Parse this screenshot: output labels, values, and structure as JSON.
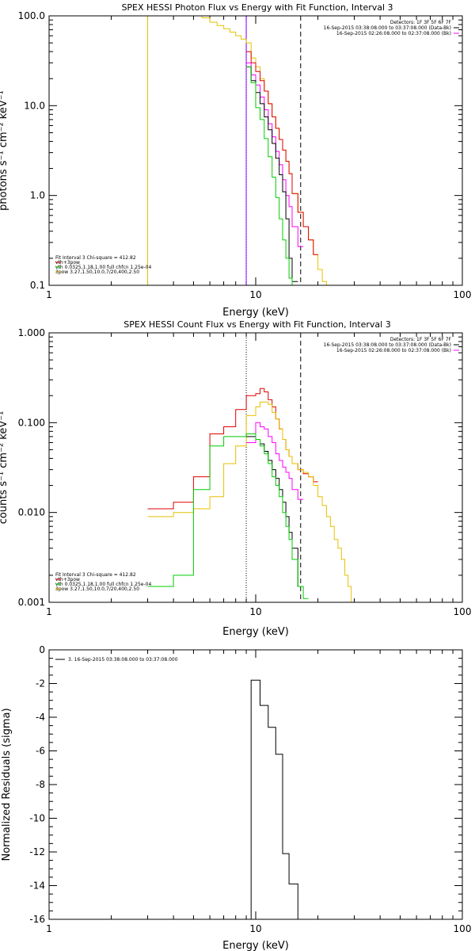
{
  "chart_data": [
    {
      "type": "line",
      "title": "SPEX HESSI Photon Flux vs Energy with Fit Function, Interval 3",
      "xlabel": "Energy (keV)",
      "ylabel": "photons s⁻¹ cm⁻² keV⁻¹",
      "x_scale": "log",
      "y_scale": "log",
      "xlim": [
        1,
        100
      ],
      "ylim": [
        0.1,
        100
      ],
      "x_ticks": [
        {
          "v": 1,
          "label": "1"
        },
        {
          "v": 10,
          "label": "10"
        },
        {
          "v": 100,
          "label": "100"
        }
      ],
      "y_ticks": [
        {
          "v": 100,
          "label": "100.0"
        },
        {
          "v": 10,
          "label": "10.0"
        },
        {
          "v": 1,
          "label": "1.0"
        },
        {
          "v": 0.1,
          "label": "0.1"
        }
      ],
      "vlines": [
        {
          "x": 9.0,
          "color": "#ff00ff",
          "dash": "none"
        },
        {
          "x": 9.0,
          "color": "#0000ff",
          "dash": "1,1"
        },
        {
          "x": 16.5,
          "color": "#000000",
          "dash": "6,4"
        },
        {
          "x": 3.0,
          "color": "#e8c000",
          "dash": "none"
        }
      ],
      "legend_right": [
        {
          "text": "Detectors: 1F 3F 5F 6F 7F",
          "color": "#000000"
        },
        {
          "text": "16-Sep-2015 03:38:08.000 to 03:37:08.000 (Data-Bk)",
          "color": "#000000"
        },
        {
          "text": "16-Sep-2015 02:26:08.000 to 02:37:08.000 (Bk)",
          "color": "#ff00ff"
        }
      ],
      "legend_left": [
        {
          "text": "Fit Interval 3   Chi-square = 412.82",
          "color": ""
        },
        {
          "text": "vth+3pow",
          "color": "#e00000"
        },
        {
          "text": "vth 0.0325,1.18,1.00  full chfcn 1.25e-04",
          "color": "#00cc00"
        },
        {
          "text": "3pow 3.27,1.50,10.0,7/20,400,2.50",
          "color": "#e8c000"
        }
      ],
      "series": [
        {
          "color": "#e8c000",
          "edges": [
            5.0,
            5.5,
            6.0,
            6.5,
            7.0,
            7.5,
            8.0,
            8.5,
            9.0,
            9.5,
            10.0,
            10.5,
            11.0,
            11.5,
            12.0,
            12.5,
            13.0,
            13.5,
            14.0,
            14.5,
            15.0,
            16.0,
            17.0,
            18.0,
            19.0,
            20.0,
            21.0,
            22.0,
            23.0
          ],
          "values": [
            100,
            95,
            85,
            78,
            72,
            66,
            60,
            55,
            50,
            34,
            27,
            20,
            14.5,
            10.5,
            7.5,
            5.6,
            4.2,
            3.2,
            2.4,
            1.75,
            1.05,
            0.65,
            0.45,
            0.32,
            0.22,
            0.15,
            0.11,
            0.08
          ]
        },
        {
          "color": "#e00000",
          "edges": [
            9.0,
            9.5,
            10.0,
            10.5,
            11.0,
            11.5,
            12.0,
            12.5,
            13.0,
            13.5,
            14.0,
            14.5,
            15.0,
            16.0,
            17.0,
            18.0,
            19.0,
            20.0
          ],
          "values": [
            40,
            30,
            24,
            19,
            14.5,
            10.5,
            7.5,
            5.6,
            4.2,
            3.2,
            2.4,
            1.75,
            1.05,
            0.65,
            0.45,
            0.32,
            0.22
          ]
        },
        {
          "color": "#ff00ff",
          "edges": [
            9.0,
            9.5,
            10.0,
            10.5,
            11.0,
            11.5,
            12.0,
            12.5,
            13.0,
            13.5,
            14.0,
            14.5,
            15.0,
            16.0,
            17.0
          ],
          "values": [
            30,
            22,
            17,
            12.5,
            9,
            6.3,
            4.5,
            3.1,
            2.2,
            1.5,
            1.0,
            0.75,
            0.45,
            0.27
          ]
        },
        {
          "color": "#000000",
          "edges": [
            9.0,
            9.5,
            10.0,
            10.5,
            11.0,
            11.5,
            12.0,
            12.5,
            13.0,
            13.5,
            14.0,
            14.5,
            15.0,
            16.0
          ],
          "values": [
            27,
            19,
            14,
            10.5,
            7.5,
            5.4,
            3.8,
            2.6,
            1.7,
            1.1,
            0.55,
            0.2,
            0.11
          ]
        },
        {
          "color": "#00cc00",
          "edges": [
            9.0,
            9.5,
            10.0,
            10.5,
            11.0,
            11.5,
            12.0,
            12.5,
            13.0,
            13.5,
            14.0,
            14.5,
            15.0,
            16.0
          ],
          "values": [
            27,
            18,
            9.5,
            7,
            4.3,
            2.7,
            1.6,
            0.95,
            0.55,
            0.32,
            0.2,
            0.12,
            0.08
          ]
        }
      ]
    },
    {
      "type": "line",
      "title": "SPEX HESSI Count Flux vs Energy with Fit Function, Interval 3",
      "xlabel": "Energy (keV)",
      "ylabel": "counts s⁻¹ cm⁻² keV⁻¹",
      "x_scale": "log",
      "y_scale": "log",
      "xlim": [
        1,
        100
      ],
      "ylim": [
        0.001,
        1
      ],
      "x_ticks": [
        {
          "v": 1,
          "label": "1"
        },
        {
          "v": 10,
          "label": "10"
        },
        {
          "v": 100,
          "label": "100"
        }
      ],
      "y_ticks": [
        {
          "v": 1,
          "label": "1.000"
        },
        {
          "v": 0.1,
          "label": "0.100"
        },
        {
          "v": 0.01,
          "label": "0.010"
        },
        {
          "v": 0.001,
          "label": "0.001"
        }
      ],
      "vlines": [
        {
          "x": 9.0,
          "color": "#000000",
          "dash": "1,2"
        },
        {
          "x": 16.5,
          "color": "#000000",
          "dash": "6,4"
        }
      ],
      "legend_right": [
        {
          "text": "Detectors: 1F 3F 5F 6F 7F",
          "color": "#000000"
        },
        {
          "text": "16-Sep-2015 03:38:08.000 to 03:37:08.000 (Data-Bk)",
          "color": "#000000"
        },
        {
          "text": "16-Sep-2015 02:26:08.000 to 02:37:08.000 (Bk)",
          "color": "#ff00ff"
        }
      ],
      "legend_left": [
        {
          "text": "Fit Interval 3   Chi-square = 412.82",
          "color": ""
        },
        {
          "text": "vth+3pow",
          "color": "#e00000"
        },
        {
          "text": "vth 0.0325,1.18,1.00  full chfcn 1.25e-04",
          "color": "#00cc00"
        },
        {
          "text": "3pow 3.27,1.50,10.0,7/20,400,2.50",
          "color": "#e8c000"
        }
      ],
      "series": [
        {
          "color": "#e00000",
          "edges": [
            3.0,
            4.0,
            5.0,
            6.0,
            7.0,
            8.0,
            9.0,
            10.0,
            10.5,
            11.0,
            11.5,
            12.0,
            12.5,
            13.0,
            13.5,
            14.0,
            14.5,
            15.0,
            16.0,
            17.0,
            18.0,
            19.0,
            20.0
          ],
          "values": [
            0.011,
            0.013,
            0.025,
            0.075,
            0.09,
            0.14,
            0.2,
            0.21,
            0.24,
            0.22,
            0.18,
            0.15,
            0.11,
            0.085,
            0.065,
            0.05,
            0.042,
            0.035,
            0.03,
            0.027,
            0.025,
            0.022
          ]
        },
        {
          "color": "#e8c000",
          "edges": [
            3.0,
            4.0,
            5.0,
            6.0,
            7.0,
            8.0,
            9.0,
            10.0,
            10.5,
            11.0,
            11.5,
            12.0,
            12.5,
            13.0,
            13.5,
            14.0,
            14.5,
            15.0,
            16.0,
            17.0,
            18.0,
            19.0,
            20.0,
            21.0,
            22.0,
            23.0,
            24.0,
            25.0,
            26.0,
            27.0,
            28.0,
            29.0,
            30.0
          ],
          "values": [
            0.009,
            0.01,
            0.011,
            0.015,
            0.035,
            0.055,
            0.12,
            0.15,
            0.17,
            0.17,
            0.16,
            0.13,
            0.11,
            0.085,
            0.065,
            0.05,
            0.042,
            0.035,
            0.03,
            0.028,
            0.025,
            0.02,
            0.015,
            0.012,
            0.009,
            0.007,
            0.005,
            0.004,
            0.003,
            0.002,
            0.0015,
            0.001
          ]
        },
        {
          "color": "#ff00ff",
          "edges": [
            9.0,
            10.0,
            10.5,
            11.0,
            11.5,
            12.0,
            12.5,
            13.0,
            13.5,
            14.0,
            14.5,
            15.0,
            16.0,
            17.0
          ],
          "values": [
            0.06,
            0.1,
            0.09,
            0.085,
            0.07,
            0.06,
            0.045,
            0.038,
            0.032,
            0.028,
            0.024,
            0.018,
            0.014
          ]
        },
        {
          "color": "#000000",
          "edges": [
            9.0,
            10.0,
            10.5,
            11.0,
            11.5,
            12.0,
            12.5,
            13.0,
            13.5,
            14.0,
            14.5,
            15.0,
            16.0,
            17.0
          ],
          "values": [
            0.07,
            0.065,
            0.058,
            0.048,
            0.038,
            0.03,
            0.024,
            0.018,
            0.013,
            0.009,
            0.006,
            0.004,
            0.0015
          ]
        },
        {
          "color": "#00cc00",
          "edges": [
            3.0,
            4.0,
            5.0,
            6.0,
            7.0,
            8.0,
            9.0,
            10.0,
            10.5,
            11.0,
            11.5,
            12.0,
            12.5,
            13.0,
            13.5,
            14.0,
            14.5,
            15.0,
            16.0,
            17.0,
            18.0
          ],
          "values": [
            0.0015,
            0.002,
            0.018,
            0.055,
            0.07,
            0.07,
            0.075,
            0.065,
            0.055,
            0.045,
            0.035,
            0.025,
            0.02,
            0.015,
            0.01,
            0.007,
            0.005,
            0.003,
            0.0015,
            0.0011
          ]
        }
      ]
    },
    {
      "type": "line",
      "title": "",
      "xlabel": "Energy (keV)",
      "ylabel": "Normalized Residuals (sigma)",
      "x_scale": "log",
      "y_scale": "linear",
      "xlim": [
        1,
        100
      ],
      "ylim": [
        -16,
        0
      ],
      "x_ticks": [
        {
          "v": 1,
          "label": "1"
        },
        {
          "v": 10,
          "label": "10"
        },
        {
          "v": 100,
          "label": "100"
        }
      ],
      "y_ticks": [
        {
          "v": 0,
          "label": "0"
        },
        {
          "v": -2,
          "label": "-2"
        },
        {
          "v": -4,
          "label": "-4"
        },
        {
          "v": -6,
          "label": "-6"
        },
        {
          "v": -8,
          "label": "-8"
        },
        {
          "v": -10,
          "label": "-10"
        },
        {
          "v": -12,
          "label": "-12"
        },
        {
          "v": -14,
          "label": "-14"
        },
        {
          "v": -16,
          "label": "-16"
        }
      ],
      "vlines": [],
      "legend_right": [],
      "legend_left": [],
      "legend_top": [
        {
          "text": "3. 16-Sep-2015 03:38:08.000 to 03:37:08.000",
          "color": "#000000"
        }
      ],
      "series": [
        {
          "color": "#000000",
          "edges": [
            9.0,
            9.5,
            10.5,
            11.5,
            12.5,
            13.5,
            14.5,
            16.0,
            17.0
          ],
          "values": [
            -16,
            -1.8,
            -3.3,
            -4.6,
            -6.2,
            -12.1,
            -13.9,
            -16
          ]
        }
      ]
    }
  ]
}
